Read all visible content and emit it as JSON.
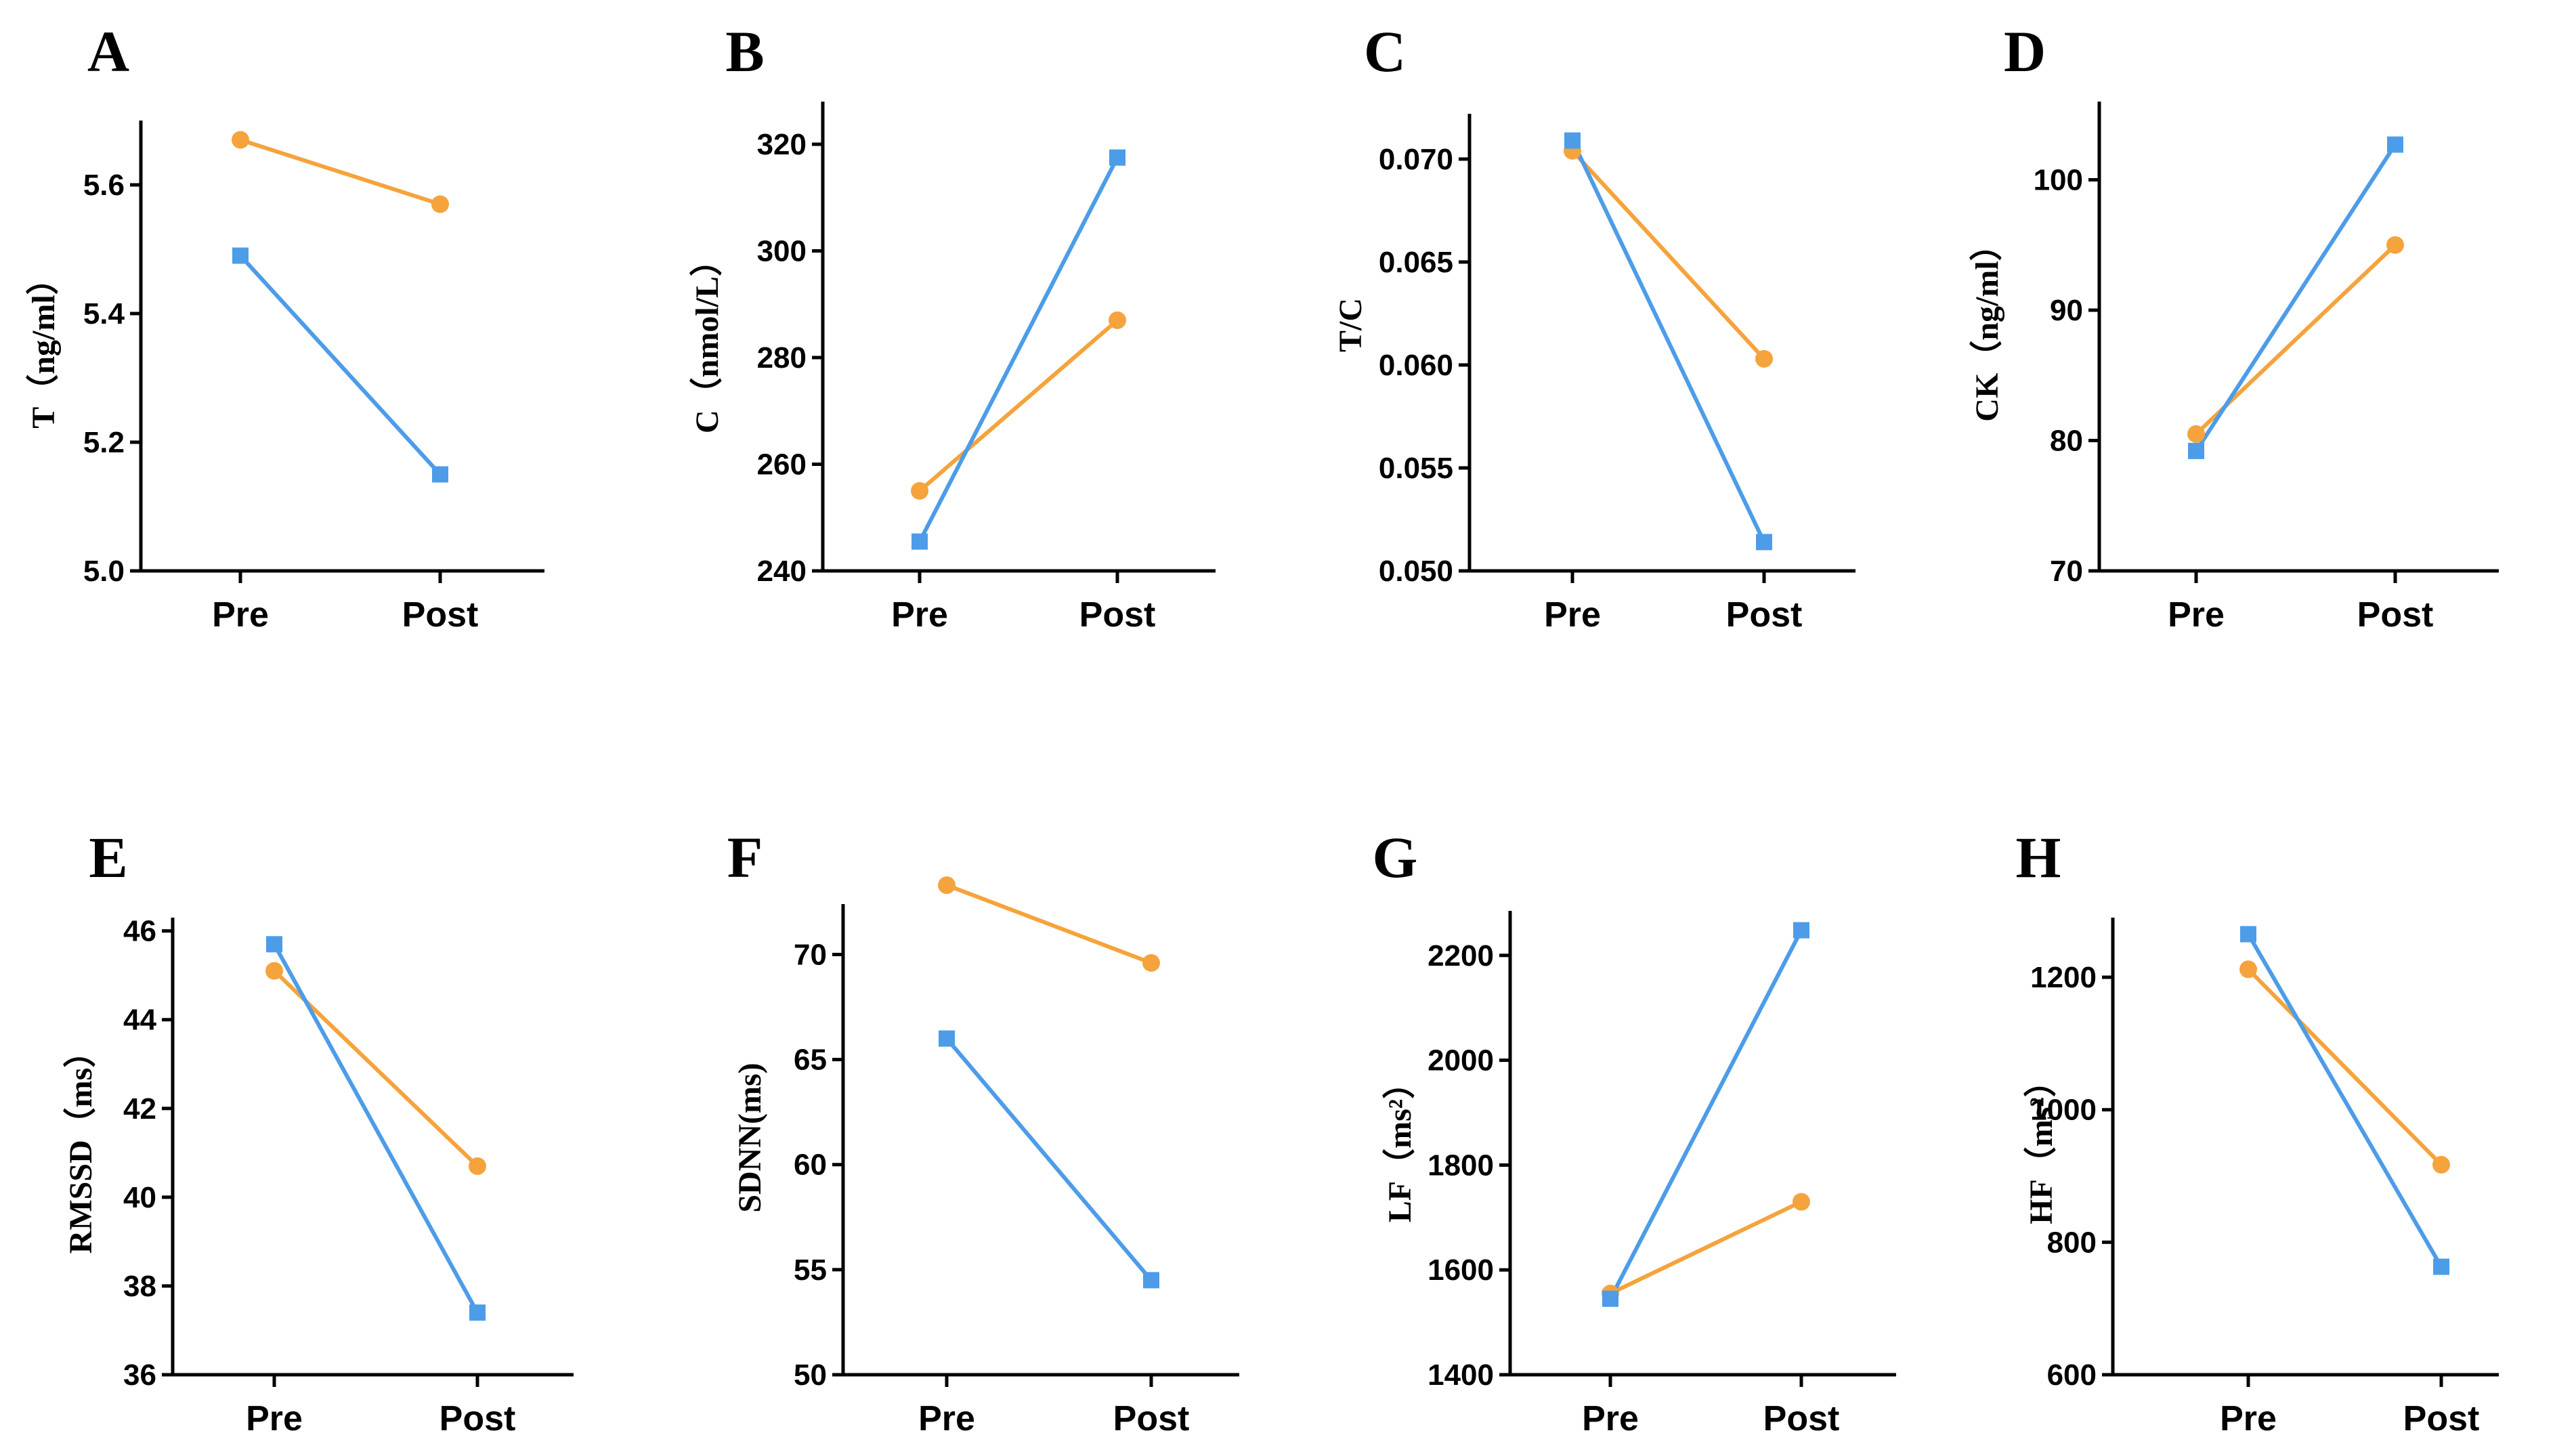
{
  "colors": {
    "blue": "#4d9ce8",
    "orange": "#f5a33c"
  },
  "chart_data": [
    {
      "type": "line",
      "panel": "A",
      "ylabel": "T（ng/ml）",
      "categories": [
        "Pre",
        "Post"
      ],
      "ylim": [
        5.0,
        5.7
      ],
      "yticks": [
        5.0,
        5.2,
        5.4,
        5.6
      ],
      "ytick_labels": [
        "5.0",
        "5.2",
        "5.4",
        "5.6"
      ],
      "series": [
        {
          "name": "orange-circle",
          "color": "orange",
          "marker": "circle",
          "values": [
            5.67,
            5.57
          ]
        },
        {
          "name": "blue-square",
          "color": "blue",
          "marker": "square",
          "values": [
            5.49,
            5.15
          ]
        }
      ]
    },
    {
      "type": "line",
      "panel": "B",
      "ylabel": "C（nmol/L）",
      "categories": [
        "Pre",
        "Post"
      ],
      "ylim": [
        240,
        328
      ],
      "yticks": [
        240,
        260,
        280,
        300,
        320
      ],
      "ytick_labels": [
        "240",
        "260",
        "280",
        "300",
        "320"
      ],
      "series": [
        {
          "name": "orange-circle",
          "color": "orange",
          "marker": "circle",
          "values": [
            255,
            287
          ]
        },
        {
          "name": "blue-square",
          "color": "blue",
          "marker": "square",
          "values": [
            245.5,
            317.5
          ]
        }
      ]
    },
    {
      "type": "line",
      "panel": "C",
      "ylabel": "T/C",
      "categories": [
        "Pre",
        "Post"
      ],
      "ylim": [
        0.05,
        0.0722
      ],
      "yticks": [
        0.05,
        0.055,
        0.06,
        0.065,
        0.07
      ],
      "ytick_labels": [
        "0.050",
        "0.055",
        "0.060",
        "0.065",
        "0.070"
      ],
      "series": [
        {
          "name": "orange-circle",
          "color": "orange",
          "marker": "circle",
          "values": [
            0.0704,
            0.0603
          ]
        },
        {
          "name": "blue-square",
          "color": "blue",
          "marker": "square",
          "values": [
            0.0709,
            0.0514
          ]
        }
      ]
    },
    {
      "type": "line",
      "panel": "D",
      "ylabel": "CK（ng/ml）",
      "categories": [
        "Pre",
        "Post"
      ],
      "ylim": [
        70,
        106
      ],
      "yticks": [
        70,
        80,
        90,
        100
      ],
      "ytick_labels": [
        "70",
        "80",
        "90",
        "100"
      ],
      "series": [
        {
          "name": "orange-circle",
          "color": "orange",
          "marker": "circle",
          "values": [
            80.5,
            95
          ]
        },
        {
          "name": "blue-square",
          "color": "blue",
          "marker": "square",
          "values": [
            79.2,
            102.7
          ]
        }
      ]
    },
    {
      "type": "line",
      "panel": "E",
      "ylabel": "RMSSD（ms）",
      "categories": [
        "Pre",
        "Post"
      ],
      "ylim": [
        36,
        46.3
      ],
      "yticks": [
        36,
        38,
        40,
        42,
        44,
        46
      ],
      "ytick_labels": [
        "36",
        "38",
        "40",
        "42",
        "44",
        "46"
      ],
      "series": [
        {
          "name": "orange-circle",
          "color": "orange",
          "marker": "circle",
          "values": [
            45.1,
            40.7
          ]
        },
        {
          "name": "blue-square",
          "color": "blue",
          "marker": "square",
          "values": [
            45.7,
            37.4
          ]
        }
      ]
    },
    {
      "type": "line",
      "panel": "F",
      "ylabel": "SDNN(ms)",
      "categories": [
        "Pre",
        "Post"
      ],
      "ylim": [
        50,
        72.4
      ],
      "yticks": [
        50,
        55,
        60,
        65,
        70
      ],
      "ytick_labels": [
        "50",
        "55",
        "60",
        "65",
        "70"
      ],
      "series": [
        {
          "name": "orange-circle",
          "color": "orange",
          "marker": "circle",
          "values": [
            73.3,
            69.6
          ]
        },
        {
          "name": "blue-square",
          "color": "blue",
          "marker": "square",
          "values": [
            66,
            54.5
          ]
        }
      ]
    },
    {
      "type": "line",
      "panel": "G",
      "ylabel": "LF（ms²）",
      "categories": [
        "Pre",
        "Post"
      ],
      "ylim": [
        1400,
        2285
      ],
      "yticks": [
        1400,
        1600,
        1800,
        2000,
        2200
      ],
      "ytick_labels": [
        "1400",
        "1600",
        "1800",
        "2000",
        "2200"
      ],
      "series": [
        {
          "name": "orange-circle",
          "color": "orange",
          "marker": "circle",
          "values": [
            1555,
            1730
          ]
        },
        {
          "name": "blue-square",
          "color": "blue",
          "marker": "square",
          "values": [
            1545,
            2248
          ]
        }
      ]
    },
    {
      "type": "line",
      "panel": "H",
      "ylabel": "HF（ms²）",
      "categories": [
        "Pre",
        "Post"
      ],
      "ylim": [
        600,
        1290
      ],
      "yticks": [
        600,
        800,
        1000,
        1200
      ],
      "ytick_labels": [
        "600",
        "800",
        "1000",
        "1200"
      ],
      "series": [
        {
          "name": "orange-circle",
          "color": "orange",
          "marker": "circle",
          "values": [
            1212,
            917
          ]
        },
        {
          "name": "blue-square",
          "color": "blue",
          "marker": "square",
          "values": [
            1265,
            763
          ]
        }
      ]
    }
  ]
}
